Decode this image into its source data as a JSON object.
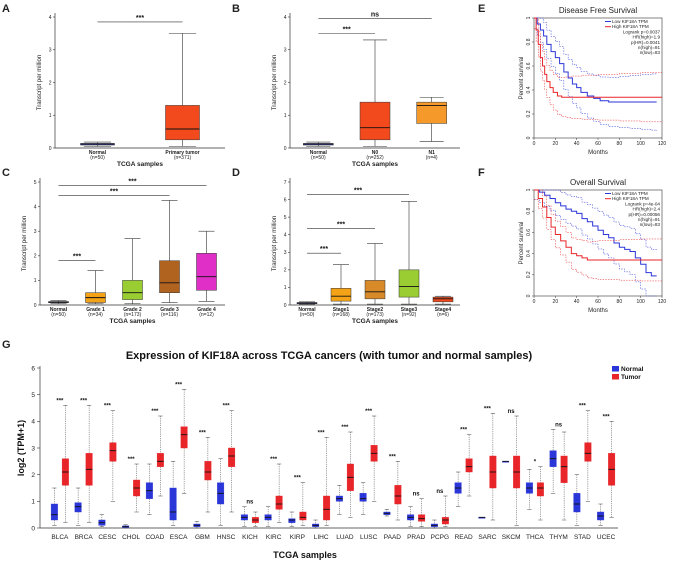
{
  "chart_data": [
    {
      "id": "A",
      "type": "box",
      "panel_label": "A",
      "xlabel": "TCGA samples",
      "ylabel": "Transcript per million",
      "ylim": [
        0,
        4
      ],
      "yticks": [
        0,
        1,
        2,
        3,
        4
      ],
      "color": "#f24a1c",
      "groups": [
        {
          "name": "Normal",
          "n": "(n=50)",
          "color": "#3f4fdc",
          "min": 0.05,
          "q1": 0.09,
          "median": 0.12,
          "q3": 0.14,
          "max": 0.18
        },
        {
          "name": "Primary tumor",
          "n": "(n=371)",
          "color": "#f24a1c",
          "min": 0.05,
          "q1": 0.25,
          "median": 0.58,
          "q3": 1.3,
          "max": 3.5
        }
      ],
      "comparisons": [
        {
          "from": 0,
          "to": 1,
          "label": "***",
          "y": 3.85
        }
      ]
    },
    {
      "id": "B",
      "type": "box",
      "panel_label": "B",
      "xlabel": "TCGA samples",
      "ylabel": "Transcript per million",
      "ylim": [
        0,
        4
      ],
      "yticks": [
        0,
        1,
        2,
        3,
        4
      ],
      "groups": [
        {
          "name": "Normal",
          "n": "(n=50)",
          "color": "#3f4fdc",
          "min": 0.05,
          "q1": 0.09,
          "median": 0.12,
          "q3": 0.14,
          "max": 0.18
        },
        {
          "name": "N0",
          "n": "(n=252)",
          "color": "#f24a1c",
          "min": 0.05,
          "q1": 0.25,
          "median": 0.62,
          "q3": 1.4,
          "max": 3.3
        },
        {
          "name": "N1",
          "n": "(n=4)",
          "color": "#f59a2a",
          "min": 0.2,
          "q1": 0.75,
          "median": 1.3,
          "q3": 1.4,
          "max": 1.55
        }
      ],
      "comparisons": [
        {
          "from": 0,
          "to": 1,
          "label": "***",
          "y": 3.5
        },
        {
          "from": 0,
          "to": 2,
          "label": "ns",
          "y": 3.95
        }
      ]
    },
    {
      "id": "C",
      "type": "box",
      "panel_label": "C",
      "xlabel": "TCGA samples",
      "ylabel": "Transcript per million",
      "ylim": [
        0,
        5
      ],
      "yticks": [
        0,
        1,
        2,
        3,
        4,
        5
      ],
      "groups": [
        {
          "name": "Normal",
          "n": "(n=50)",
          "color": "#3f4fdc",
          "min": 0.05,
          "q1": 0.09,
          "median": 0.12,
          "q3": 0.14,
          "max": 0.18
        },
        {
          "name": "Grade 1",
          "n": "(n=34)",
          "color": "#f5a316",
          "min": 0.05,
          "q1": 0.1,
          "median": 0.3,
          "q3": 0.5,
          "max": 1.4
        },
        {
          "name": "Grade 2",
          "n": "(n=173)",
          "color": "#9acd32",
          "min": 0.05,
          "q1": 0.22,
          "median": 0.5,
          "q3": 1.0,
          "max": 2.7
        },
        {
          "name": "Grade 3",
          "n": "(n=116)",
          "color": "#b0621f",
          "min": 0.1,
          "q1": 0.5,
          "median": 0.9,
          "q3": 1.8,
          "max": 4.25
        },
        {
          "name": "Grade 4",
          "n": "(n=12)",
          "color": "#e02fc6",
          "min": 0.15,
          "q1": 0.6,
          "median": 1.15,
          "q3": 2.1,
          "max": 3.0
        }
      ],
      "comparisons": [
        {
          "from": 0,
          "to": 1,
          "label": "***",
          "y": 1.8
        },
        {
          "from": 0,
          "to": 3,
          "label": "***",
          "y": 4.45
        },
        {
          "from": 0,
          "to": 4,
          "label": "***",
          "y": 4.85
        }
      ]
    },
    {
      "id": "D",
      "type": "box",
      "panel_label": "D",
      "xlabel": "TCGA samples",
      "ylabel": "Transcript per million",
      "ylim": [
        0,
        7
      ],
      "yticks": [
        0,
        1,
        2,
        3,
        4,
        5,
        6,
        7
      ],
      "groups": [
        {
          "name": "Normal",
          "n": "(n=50)",
          "color": "#3f4fdc",
          "min": 0.05,
          "q1": 0.09,
          "median": 0.12,
          "q3": 0.14,
          "max": 0.18
        },
        {
          "name": "Stage1",
          "n": "(n=168)",
          "color": "#f5a316",
          "min": 0.05,
          "q1": 0.22,
          "median": 0.5,
          "q3": 0.95,
          "max": 2.3
        },
        {
          "name": "Stage2",
          "n": "(n=173)",
          "color": "#d98a28",
          "min": 0.05,
          "q1": 0.35,
          "median": 0.75,
          "q3": 1.4,
          "max": 3.5
        },
        {
          "name": "Stage3",
          "n": "(n=92)",
          "color": "#9acd32",
          "min": 0.05,
          "q1": 0.45,
          "median": 1.05,
          "q3": 2.0,
          "max": 5.9
        },
        {
          "name": "Stage4",
          "n": "(n=6)",
          "color": "#f24a1c",
          "min": 0.05,
          "q1": 0.18,
          "median": 0.35,
          "q3": 0.45,
          "max": 0.5
        }
      ],
      "comparisons": [
        {
          "from": 0,
          "to": 1,
          "label": "***",
          "y": 2.95
        },
        {
          "from": 0,
          "to": 2,
          "label": "***",
          "y": 4.35
        },
        {
          "from": 0,
          "to": 3,
          "label": "***",
          "y": 6.3
        }
      ]
    },
    {
      "id": "E",
      "type": "survival",
      "panel_label": "E",
      "title": "Disease Free Survival",
      "xlabel": "Months",
      "ylabel": "Percent survival",
      "xlim": [
        0,
        120
      ],
      "ylim": [
        0,
        1
      ],
      "xticks": [
        0,
        20,
        40,
        60,
        80,
        100,
        120
      ],
      "yticks": [
        0,
        0.2,
        0.4,
        0.6,
        0.8,
        1
      ],
      "legend": [
        "Low KIF18A TPM",
        "High KIF18A TPM",
        "Logrank p=0.0037",
        "HR(high)=1.9",
        "p(HR)=0.0041",
        "n(high)=91",
        "n(low)=83"
      ],
      "series": [
        {
          "name": "Low KIF18A TPM",
          "color": "#2b36d8",
          "x": [
            0,
            3,
            6,
            9,
            12,
            16,
            20,
            24,
            28,
            32,
            36,
            40,
            44,
            50,
            56,
            62,
            70,
            80,
            90,
            100,
            110,
            115
          ],
          "y": [
            1,
            0.95,
            0.9,
            0.85,
            0.78,
            0.72,
            0.67,
            0.62,
            0.55,
            0.5,
            0.45,
            0.42,
            0.38,
            0.35,
            0.33,
            0.31,
            0.3,
            0.3,
            0.3,
            0.3,
            0.3,
            0.3
          ]
        },
        {
          "name": "High KIF18A TPM",
          "color": "#e8262a",
          "x": [
            0,
            2,
            4,
            6,
            8,
            10,
            12,
            15,
            18,
            22,
            26,
            30,
            35,
            45,
            60,
            80,
            100,
            120
          ],
          "y": [
            1,
            0.9,
            0.78,
            0.67,
            0.6,
            0.53,
            0.47,
            0.42,
            0.38,
            0.35,
            0.34,
            0.34,
            0.34,
            0.34,
            0.34,
            0.34,
            0.34,
            0.34
          ]
        }
      ]
    },
    {
      "id": "F",
      "type": "survival",
      "panel_label": "F",
      "title": "Overall Survival",
      "xlabel": "Months",
      "ylabel": "Percent survival",
      "xlim": [
        0,
        120
      ],
      "ylim": [
        0,
        1
      ],
      "xticks": [
        0,
        20,
        40,
        60,
        80,
        100,
        120
      ],
      "yticks": [
        0,
        0.2,
        0.4,
        0.6,
        0.8,
        1
      ],
      "legend": [
        "Low KIF18A TPM",
        "High KIF18A TPM",
        "Logrank p=4e-04",
        "HR(high)=2.4",
        "p(HR)=0.00056",
        "n(high)=91",
        "n(low)=83"
      ],
      "series": [
        {
          "name": "Low KIF18A TPM",
          "color": "#2b36d8",
          "x": [
            0,
            5,
            10,
            15,
            20,
            25,
            30,
            35,
            40,
            45,
            50,
            55,
            60,
            65,
            70,
            75,
            80,
            85,
            90,
            95,
            100,
            105,
            110,
            115
          ],
          "y": [
            1,
            0.98,
            0.95,
            0.92,
            0.88,
            0.85,
            0.82,
            0.8,
            0.78,
            0.73,
            0.7,
            0.66,
            0.62,
            0.58,
            0.55,
            0.5,
            0.46,
            0.44,
            0.42,
            0.36,
            0.3,
            0.22,
            0.19,
            0.19
          ]
        },
        {
          "name": "High KIF18A TPM",
          "color": "#e8262a",
          "x": [
            0,
            4,
            8,
            12,
            16,
            20,
            25,
            30,
            35,
            40,
            45,
            50,
            55,
            60,
            80,
            100,
            120
          ],
          "y": [
            1,
            0.92,
            0.84,
            0.74,
            0.65,
            0.58,
            0.52,
            0.46,
            0.4,
            0.38,
            0.36,
            0.34,
            0.34,
            0.34,
            0.34,
            0.34,
            0.34
          ]
        }
      ]
    },
    {
      "id": "G",
      "type": "box",
      "panel_label": "G",
      "title": "Expression of KIF18A across TCGA cancers (with tumor and normal samples)",
      "xlabel": "TCGA samples",
      "ylabel": "log2 (TPM+1)",
      "ylim": [
        0,
        6
      ],
      "yticks": [
        0,
        1,
        2,
        3,
        4,
        5,
        6
      ],
      "legend": [
        {
          "name": "Normal",
          "color": "#2b36d8"
        },
        {
          "name": "Tumor",
          "color": "#e8262a"
        }
      ],
      "cancers": [
        {
          "name": "BLCA",
          "sig": "***",
          "normal": [
            0.1,
            0.3,
            0.5,
            0.9,
            1.5
          ],
          "tumor": [
            0.2,
            1.6,
            2.1,
            2.6,
            4.6
          ]
        },
        {
          "name": "BRCA",
          "sig": "***",
          "normal": [
            0.1,
            0.6,
            0.8,
            0.95,
            1.5
          ],
          "tumor": [
            0.2,
            1.6,
            2.2,
            2.8,
            4.6
          ]
        },
        {
          "name": "CESC",
          "sig": "***",
          "normal": [
            0.05,
            0.1,
            0.2,
            0.3,
            0.5
          ],
          "tumor": [
            1.0,
            2.5,
            2.9,
            3.2,
            4.4
          ]
        },
        {
          "name": "CHOL",
          "sig": "***",
          "normal": [
            0.0,
            0.02,
            0.05,
            0.08,
            0.12
          ],
          "tumor": [
            0.6,
            1.2,
            1.5,
            1.8,
            2.4
          ]
        },
        {
          "name": "COAD",
          "sig": "***",
          "normal": [
            0.5,
            1.1,
            1.4,
            1.7,
            2.4
          ],
          "tumor": [
            1.2,
            2.3,
            2.5,
            2.8,
            4.2
          ]
        },
        {
          "name": "ESCA",
          "sig": "***",
          "normal": [
            0.1,
            0.3,
            0.6,
            1.5,
            2.5
          ],
          "tumor": [
            1.3,
            3.0,
            3.5,
            3.8,
            5.2
          ]
        },
        {
          "name": "GBM",
          "sig": "***",
          "normal": [
            0.0,
            0.05,
            0.1,
            0.15,
            0.25
          ],
          "tumor": [
            0.6,
            1.8,
            2.1,
            2.5,
            3.4
          ]
        },
        {
          "name": "HNSC",
          "sig": "***",
          "normal": [
            0.1,
            0.9,
            1.3,
            1.7,
            2.6
          ],
          "tumor": [
            0.6,
            2.3,
            2.7,
            3.0,
            4.4
          ]
        },
        {
          "name": "KICH",
          "sig": "ns",
          "normal": [
            0.05,
            0.3,
            0.4,
            0.5,
            0.8
          ],
          "tumor": [
            0.05,
            0.2,
            0.3,
            0.4,
            0.6
          ]
        },
        {
          "name": "KIRC",
          "sig": "***",
          "normal": [
            0.05,
            0.3,
            0.4,
            0.5,
            0.8
          ],
          "tumor": [
            0.2,
            0.7,
            0.9,
            1.2,
            2.4
          ]
        },
        {
          "name": "KIRP",
          "sig": "***",
          "normal": [
            0.05,
            0.2,
            0.3,
            0.35,
            0.6
          ],
          "tumor": [
            0.1,
            0.3,
            0.4,
            0.6,
            1.7
          ]
        },
        {
          "name": "LIHC",
          "sig": "***",
          "normal": [
            0.0,
            0.05,
            0.1,
            0.15,
            0.3
          ],
          "tumor": [
            0.1,
            0.3,
            0.7,
            1.2,
            3.4
          ]
        },
        {
          "name": "LUAD",
          "sig": "***",
          "normal": [
            0.5,
            1.0,
            1.1,
            1.2,
            1.6
          ],
          "tumor": [
            0.4,
            1.4,
            1.9,
            2.4,
            3.6
          ]
        },
        {
          "name": "LUSC",
          "sig": "***",
          "normal": [
            0.5,
            1.0,
            1.1,
            1.3,
            1.7
          ],
          "tumor": [
            1.0,
            2.5,
            2.8,
            3.1,
            4.2
          ]
        },
        {
          "name": "PAAD",
          "sig": "***",
          "normal": [
            0.45,
            0.5,
            0.55,
            0.6,
            0.7
          ],
          "tumor": [
            0.3,
            0.9,
            1.2,
            1.6,
            2.5
          ]
        },
        {
          "name": "PRAD",
          "sig": "ns",
          "normal": [
            0.05,
            0.3,
            0.4,
            0.5,
            0.8
          ],
          "tumor": [
            0.05,
            0.25,
            0.35,
            0.5,
            1.1
          ]
        },
        {
          "name": "PCPG",
          "sig": "ns",
          "normal": [
            0.0,
            0.05,
            0.1,
            0.15,
            0.3
          ],
          "tumor": [
            0.05,
            0.15,
            0.3,
            0.4,
            1.2
          ]
        },
        {
          "name": "READ",
          "sig": "***",
          "normal": [
            0.8,
            1.3,
            1.5,
            1.7,
            2.1
          ],
          "tumor": [
            1.2,
            2.1,
            2.3,
            2.6,
            3.5
          ]
        },
        {
          "name": "SARC",
          "sig": "***",
          "normal": [
            0.4,
            0.4,
            0.4,
            0.4,
            0.4
          ],
          "tumor": [
            0.3,
            1.5,
            2.1,
            2.7,
            4.3
          ]
        },
        {
          "name": "SKCM",
          "sig": "ns",
          "normal": [
            2.5,
            2.5,
            2.5,
            2.5,
            2.5
          ],
          "tumor": [
            0.1,
            1.5,
            2.1,
            2.7,
            4.2
          ]
        },
        {
          "name": "THCA",
          "sig": "*",
          "normal": [
            0.7,
            1.3,
            1.5,
            1.7,
            2.2
          ],
          "tumor": [
            0.3,
            1.2,
            1.5,
            1.7,
            2.3
          ]
        },
        {
          "name": "THYM",
          "sig": "ns",
          "normal": [
            1.3,
            2.3,
            2.6,
            2.9,
            3.7
          ],
          "tumor": [
            0.3,
            1.7,
            2.3,
            2.7,
            3.6
          ]
        },
        {
          "name": "STAD",
          "sig": "***",
          "normal": [
            0.1,
            0.6,
            0.9,
            1.3,
            2.0
          ],
          "tumor": [
            1.0,
            2.5,
            2.8,
            3.2,
            4.4
          ]
        },
        {
          "name": "UCEC",
          "sig": "***",
          "normal": [
            0.1,
            0.3,
            0.45,
            0.6,
            0.9
          ],
          "tumor": [
            0.4,
            1.6,
            2.2,
            2.8,
            4.0
          ]
        }
      ]
    }
  ]
}
